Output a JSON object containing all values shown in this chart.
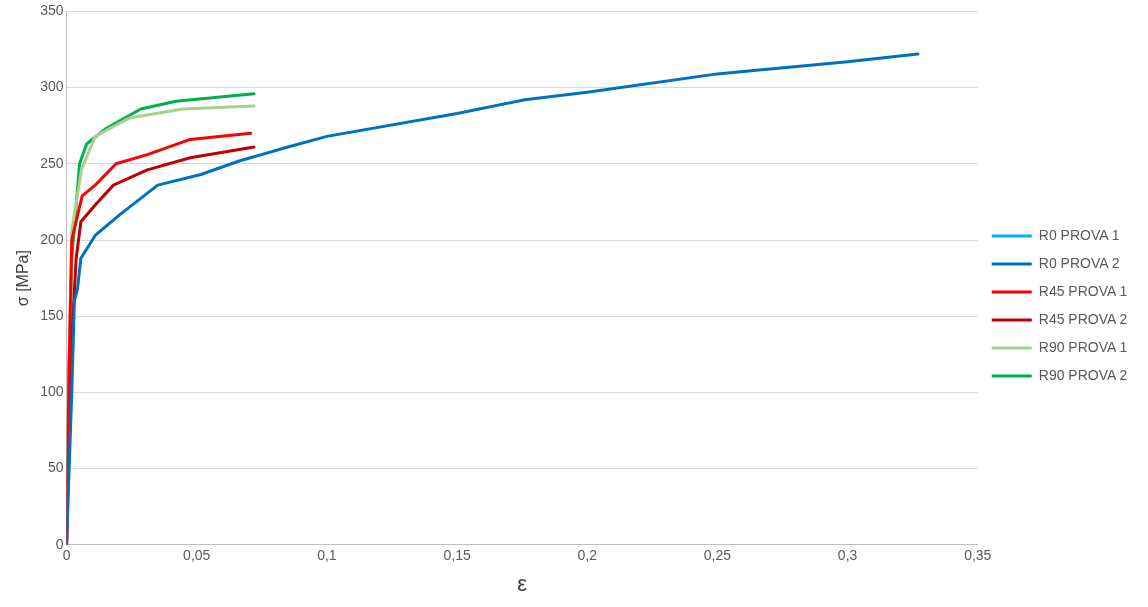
{
  "chart_data": {
    "type": "line",
    "xlabel": "ε",
    "ylabel": "σ [MPa]",
    "xlim": [
      0,
      0.35
    ],
    "ylim": [
      0,
      350
    ],
    "xticks": [
      0,
      {
        "value": 0.05,
        "label": "0,05"
      },
      {
        "value": 0.1,
        "label": "0,1"
      },
      {
        "value": 0.15,
        "label": "0,15"
      },
      {
        "value": 0.2,
        "label": "0,2"
      },
      {
        "value": 0.25,
        "label": "0,25"
      },
      {
        "value": 0.3,
        "label": "0,3"
      },
      {
        "value": 0.35,
        "label": "0,35"
      }
    ],
    "yticks": [
      0,
      50,
      100,
      150,
      200,
      250,
      300,
      350
    ],
    "grid": "y",
    "legend": "right",
    "marker": "none",
    "line_style": "solid",
    "series": [
      {
        "name": "R0 PROVA 1",
        "color": "#00b0f0"
      },
      {
        "name": "R0 PROVA 2",
        "color": "#0070c0",
        "x": [
          0,
          0.002,
          0.003,
          0.0042,
          0.0055,
          0.011,
          0.02,
          0.035,
          0.0516,
          0.0666,
          0.085,
          0.1,
          0.15,
          0.176,
          0.2,
          0.25,
          0.3,
          0.327
        ],
        "values": [
          0,
          100,
          160,
          168,
          188,
          203,
          216,
          236,
          243,
          252,
          261,
          268,
          283,
          292,
          297,
          309,
          317,
          322
        ]
      },
      {
        "name": "R45 PROVA 1",
        "color": "#ff0000",
        "x": [
          0,
          0.001,
          0.002,
          0.006,
          0.011,
          0.019,
          0.031,
          0.0475,
          0.0707
        ],
        "values": [
          0,
          120,
          200,
          229,
          236,
          250,
          256,
          266,
          270
        ]
      },
      {
        "name": "R45 PROVA 2",
        "color": "#c00000",
        "x": [
          0,
          0.0015,
          0.0037,
          0.0055,
          0.011,
          0.018,
          0.031,
          0.0475,
          0.072
        ],
        "values": [
          0,
          120,
          188,
          212,
          223,
          236,
          246,
          254,
          261
        ]
      },
      {
        "name": "R90 PROVA 1",
        "color": "#a9d18e",
        "x": [
          0,
          0.001,
          0.002,
          0.0057,
          0.011,
          0.024,
          0.0447,
          0.072
        ],
        "values": [
          0,
          120,
          206,
          246,
          268,
          280,
          286,
          288
        ]
      },
      {
        "name": "R90 PROVA 2",
        "color": "#00b050",
        "x": [
          0,
          0.001,
          0.002,
          0.0037,
          0.005,
          0.0077,
          0.015,
          0.0285,
          0.042,
          0.072
        ],
        "values": [
          0,
          120,
          188,
          223,
          250,
          263,
          273,
          286,
          291,
          296
        ]
      }
    ]
  }
}
